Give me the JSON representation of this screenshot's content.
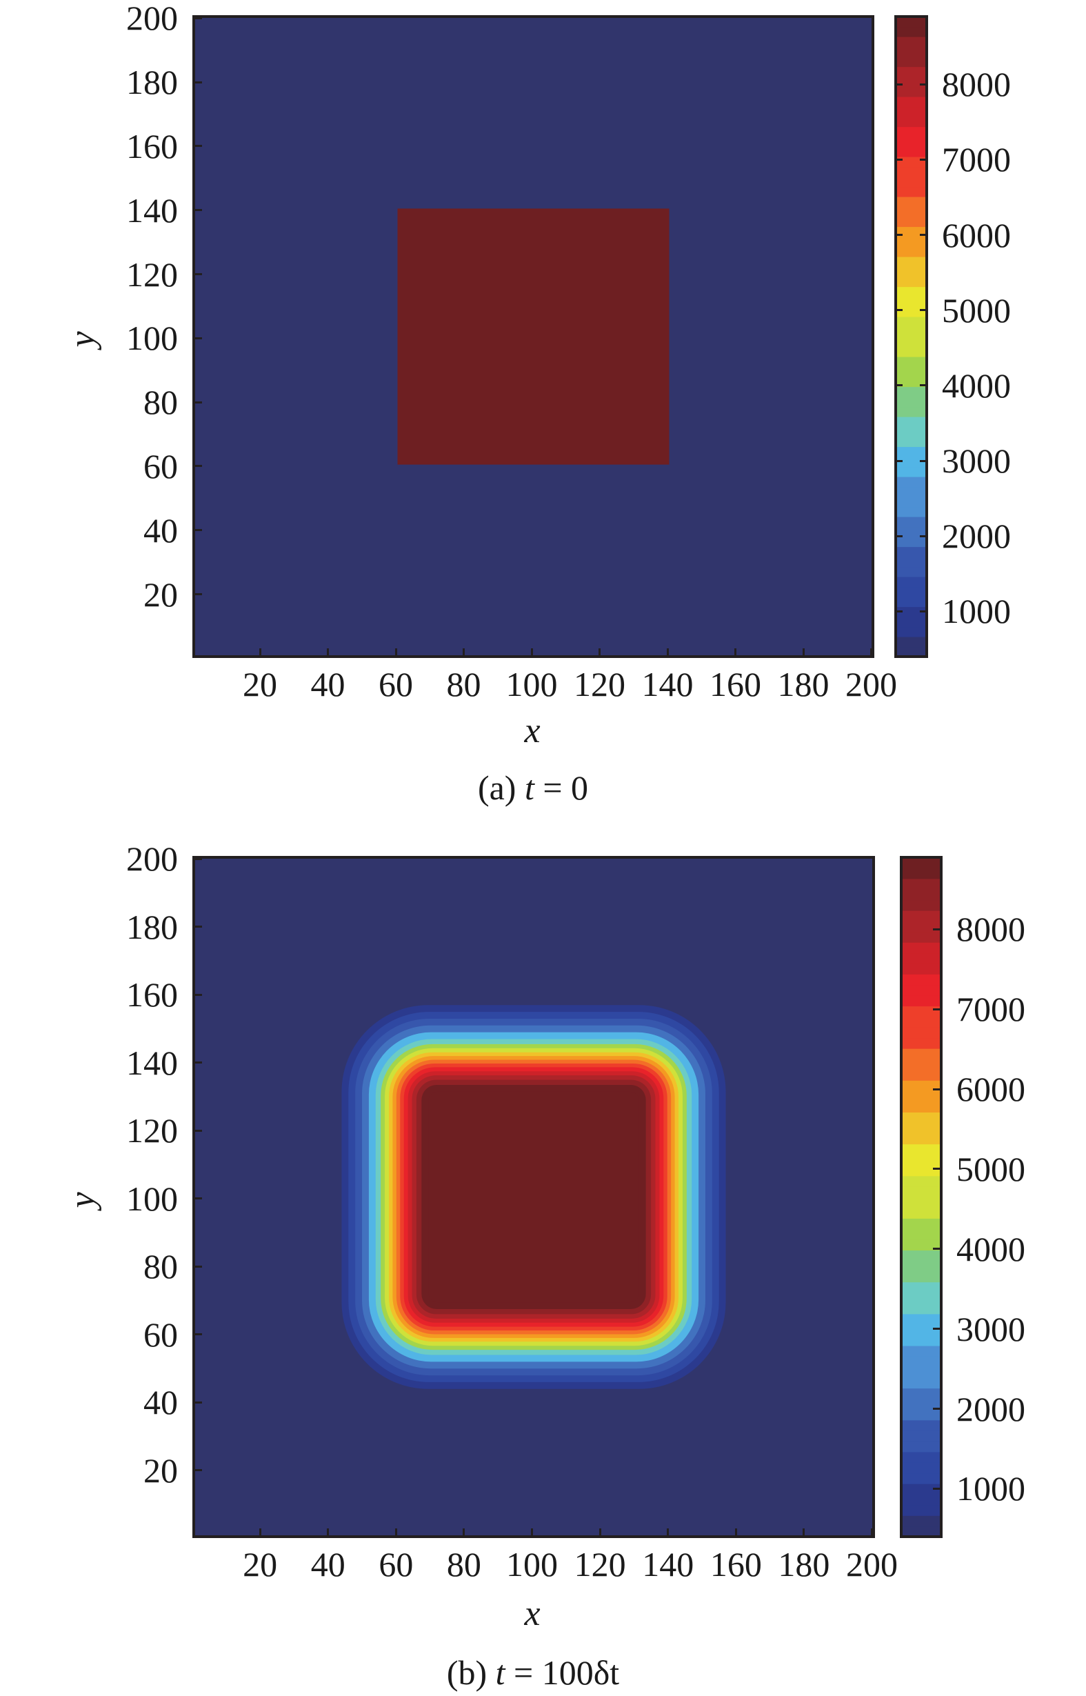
{
  "colors": {
    "background_low": "#31356c",
    "background_high": "#6e1f22",
    "axis": "#231f20",
    "colormap": [
      "#2f3470",
      "#2b3a8e",
      "#2f48a2",
      "#3757ad",
      "#4272bf",
      "#4d90d4",
      "#52b5e6",
      "#6cccc4",
      "#7fcc86",
      "#a3d54c",
      "#cfe13a",
      "#e9e62e",
      "#f0c22a",
      "#f49a22",
      "#f36e28",
      "#ee3f2a",
      "#e8232a",
      "#cd2229",
      "#ad2429",
      "#8f2226",
      "#6e1f22"
    ]
  },
  "panels": [
    {
      "id": "a",
      "caption_prefix": "(a) ",
      "caption_var": "t",
      "caption_suffix": " = 0",
      "xlabel": "x",
      "ylabel": "y"
    },
    {
      "id": "b",
      "caption_prefix": "(b) ",
      "caption_var": "t",
      "caption_suffix": " = 100δt",
      "xlabel": "x",
      "ylabel": "y"
    }
  ],
  "axis_ticks": [
    "20",
    "40",
    "60",
    "80",
    "100",
    "120",
    "140",
    "160",
    "180",
    "200"
  ],
  "colorbar_ticks": [
    "1000",
    "2000",
    "3000",
    "4000",
    "5000",
    "6000",
    "7000",
    "8000"
  ],
  "chart_data": [
    {
      "type": "heatmap",
      "title": "(a) t = 0",
      "xlabel": "x",
      "ylabel": "y",
      "xlim": [
        0.5,
        200.5
      ],
      "ylim": [
        0.5,
        200.5
      ],
      "xticks": [
        20,
        40,
        60,
        80,
        100,
        120,
        140,
        160,
        180,
        200
      ],
      "yticks": [
        20,
        40,
        60,
        80,
        100,
        120,
        140,
        160,
        180,
        200
      ],
      "colorbar": {
        "range": [
          400,
          8900
        ],
        "ticks": [
          1000,
          2000,
          3000,
          4000,
          5000,
          6000,
          7000,
          8000
        ],
        "colormap": "jet"
      },
      "grid": false,
      "description": "Uniform low background (~400) with a sharp high-value square (~8900) spanning x≈61–140, y≈61–140",
      "regions": [
        {
          "label": "background",
          "value": 400,
          "x": [
            1,
            200
          ],
          "y": [
            1,
            200
          ]
        },
        {
          "label": "square",
          "value": 8900,
          "x": [
            61,
            140
          ],
          "y": [
            61,
            140
          ]
        }
      ]
    },
    {
      "type": "heatmap",
      "title": "(b) t = 100δt",
      "xlabel": "x",
      "ylabel": "y",
      "xlim": [
        0.5,
        200.5
      ],
      "ylim": [
        0.5,
        200.5
      ],
      "xticks": [
        20,
        40,
        60,
        80,
        100,
        120,
        140,
        160,
        180,
        200
      ],
      "yticks": [
        20,
        40,
        60,
        80,
        100,
        120,
        140,
        160,
        180,
        200
      ],
      "colorbar": {
        "range": [
          400,
          8900
        ],
        "ticks": [
          1000,
          2000,
          3000,
          4000,
          5000,
          6000,
          7000,
          8000
        ],
        "colormap": "jet"
      },
      "grid": false,
      "description": "Diffused square with rounded corners: plateau ~8900 at x,y≈71–130, steep transition through red/yellow/cyan near x,y≈60–140, background ~400 beyond ≈52 and ≈148",
      "regions": [
        {
          "label": "background",
          "value": 400,
          "x": [
            1,
            200
          ],
          "y": [
            1,
            200
          ]
        },
        {
          "label": "plateau",
          "value": 8900,
          "x": [
            71,
            130
          ],
          "y": [
            71,
            130
          ]
        },
        {
          "label": "half-max contour (yellow, ~5500)",
          "value": 5500,
          "x": [
            61,
            139
          ],
          "y": [
            61,
            139
          ]
        },
        {
          "label": "outer fringe (blue, ~1500)",
          "value": 1500,
          "x": [
            53,
            148
          ],
          "y": [
            53,
            148
          ]
        }
      ]
    }
  ]
}
